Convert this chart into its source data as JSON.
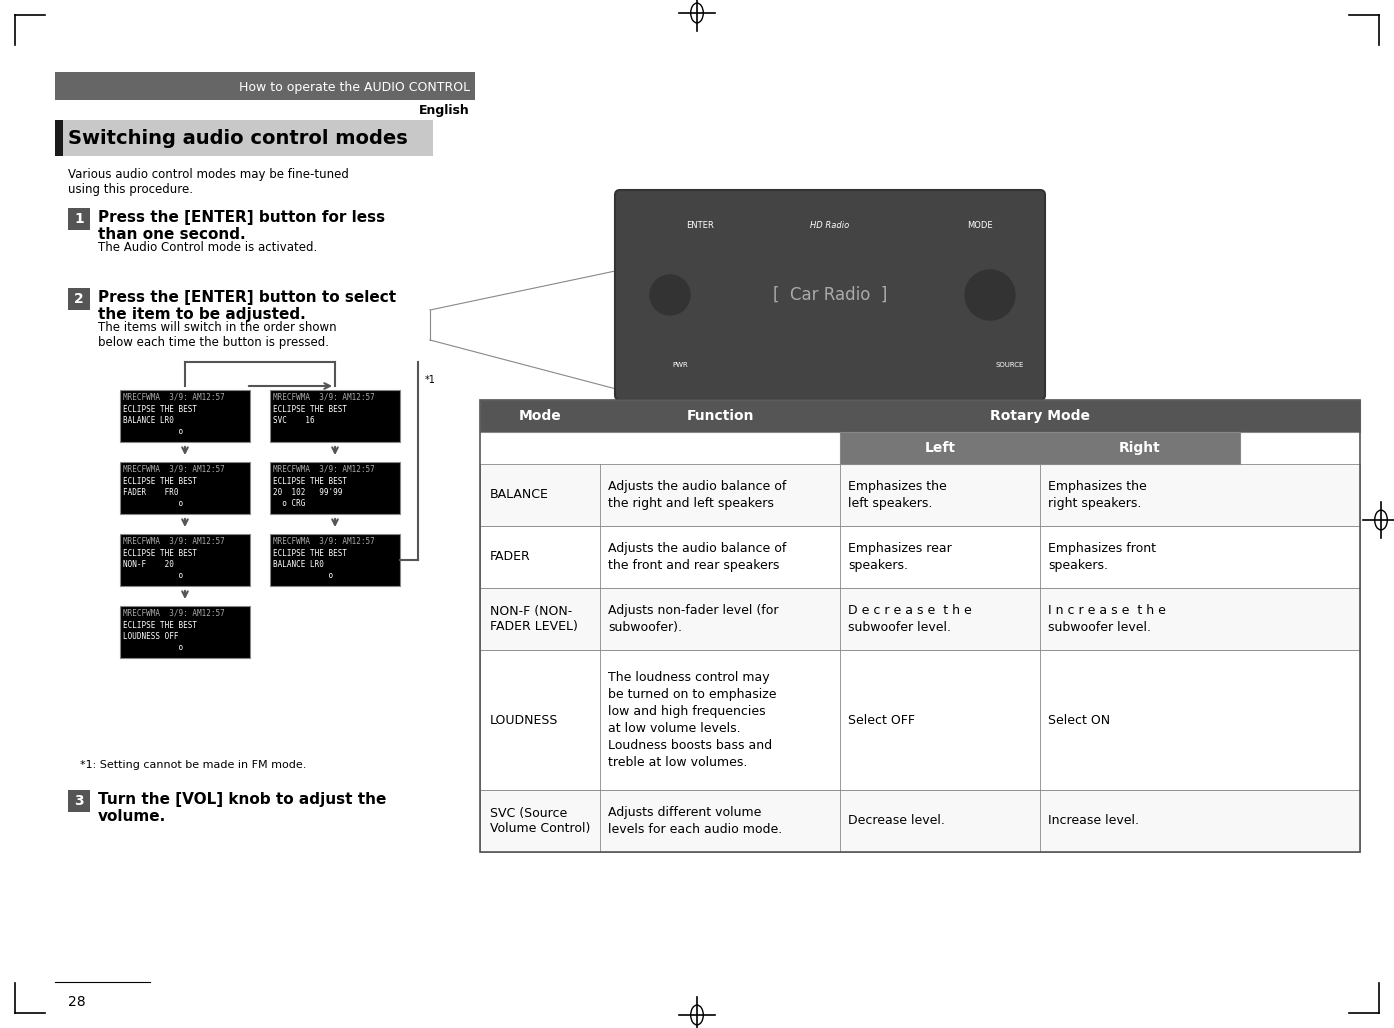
{
  "page_bg": "#ffffff",
  "header_bar_color": "#666666",
  "header_text": "How to operate the AUDIO CONTROL",
  "header_text_color": "#ffffff",
  "lang_text": "English",
  "section_title": "Switching audio control modes",
  "section_title_bg": "#333333",
  "section_title_color": "#ffffff",
  "section_bar_color": "#333333",
  "intro_text": "Various audio control modes may be fine-tuned\nusing this procedure.",
  "steps": [
    {
      "num": "1",
      "num_bg": "#555555",
      "main": "Press the [ENTER] button for less\nthan one second.",
      "sub": "The Audio Control mode is activated."
    },
    {
      "num": "2",
      "num_bg": "#555555",
      "main": "Press the [ENTER] button to select\nthe item to be adjusted.",
      "sub": "The items will switch in the order shown\nbelow each time the button is pressed."
    },
    {
      "num": "3",
      "num_bg": "#555555",
      "main": "Turn the [VOL] knob to adjust the\nvolume.",
      "sub": ""
    }
  ],
  "footnote": "*1: Setting cannot be made in FM mode.",
  "page_number": "28",
  "table_header_bg": "#555555",
  "table_header_color": "#ffffff",
  "table_subheader_bg": "#777777",
  "table_subheader_color": "#ffffff",
  "table_border_color": "#888888",
  "table_bg": "#ffffff",
  "table_alt_bg": "#f5f5f5",
  "table_columns": [
    "Mode",
    "Function",
    "Left",
    "Right"
  ],
  "table_rotary_header": "Rotary Mode",
  "table_rows": [
    {
      "mode": "BALANCE",
      "function": "Adjusts the audio balance of\nthe right and left speakers",
      "left": "Emphasizes the\nleft speakers.",
      "right": "Emphasizes the\nright speakers."
    },
    {
      "mode": "FADER",
      "function": "Adjusts the audio balance of\nthe front and rear speakers",
      "left": "Emphasizes rear\nspeakers.",
      "right": "Emphasizes front\nspeakers."
    },
    {
      "mode": "NON-F (NON-\nFADER LEVEL)",
      "function": "Adjusts non-fader level (for\nsubwoofer).",
      "left": "D e c r e a s e  t h e\nsubwoofer level.",
      "right": "I n c r e a s e  t h e\nsubwoofer level."
    },
    {
      "mode": "LOUDNESS",
      "function": "The loudness control may\nbe turned on to emphasize\nlow and high frequencies\nat low volume levels.\nLoudness boosts bass and\ntreble at low volumes.",
      "left": "Select OFF",
      "right": "Select ON"
    },
    {
      "mode": "SVC (Source\nVolume Control)",
      "function": "Adjusts different volume\nlevels for each audio mode.",
      "left": "Decrease level.",
      "right": "Increase level."
    }
  ],
  "screen_images": [
    {
      "line1": "MRECFWMA  3/9: AM12:57",
      "line2": "ECLIPSE THE BEST",
      "line3": "BALANCE LR0",
      "line4": "            o"
    },
    {
      "line1": "MRECFWMA  3/9: AM12:57",
      "line2": "ECLIPSE THE BEST",
      "line3": "FADER    FR0",
      "line4": "            o"
    },
    {
      "line1": "MRECFWMA  3/9: AM12:57",
      "line2": "ECLIPSE THE BEST",
      "line3": "NON-F    20",
      "line4": "            o"
    },
    {
      "line1": "MRECFWMA  3/9: AM12:57",
      "line2": "ECLIPSE THE BEST",
      "line3": "LOUDNESS OFF",
      "line4": "            o"
    },
    {
      "line1": "MRECFWMA  3/9: AM12:57",
      "line2": "ECLIPSE THE BEST",
      "line3": "SVC    16",
      "line4": ""
    },
    {
      "line1": "MRECFWMA  3/9: AM12:57",
      "line2": "ECLIPSE THE BEST",
      "line3": "20  102  99'99",
      "line4": ""
    },
    {
      "line1": "MRECFWMA  3/9: AM12:57",
      "line2": "ECLIPSE THE BEST",
      "line3": "BALANCE LR0",
      "line4": ""
    }
  ]
}
